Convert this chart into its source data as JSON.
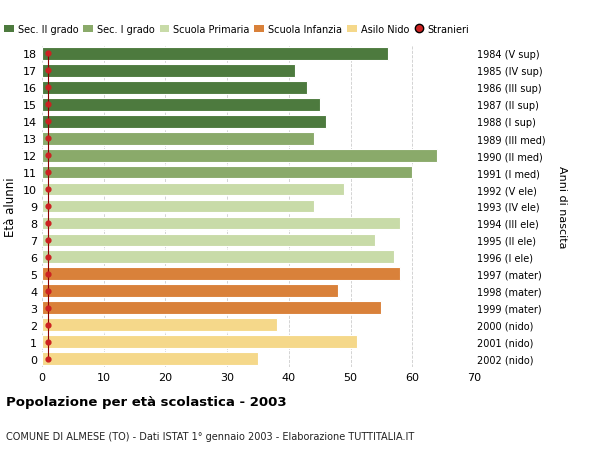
{
  "ages": [
    0,
    1,
    2,
    3,
    4,
    5,
    6,
    7,
    8,
    9,
    10,
    11,
    12,
    13,
    14,
    15,
    16,
    17,
    18
  ],
  "values": [
    35,
    51,
    38,
    55,
    48,
    58,
    57,
    54,
    58,
    44,
    49,
    60,
    64,
    44,
    46,
    45,
    43,
    41,
    56
  ],
  "right_labels": [
    "2002 (nido)",
    "2001 (nido)",
    "2000 (nido)",
    "1999 (mater)",
    "1998 (mater)",
    "1997 (mater)",
    "1996 (I ele)",
    "1995 (II ele)",
    "1994 (III ele)",
    "1993 (IV ele)",
    "1992 (V ele)",
    "1991 (I med)",
    "1990 (II med)",
    "1989 (III med)",
    "1988 (I sup)",
    "1987 (II sup)",
    "1986 (III sup)",
    "1985 (IV sup)",
    "1984 (V sup)"
  ],
  "bar_colors": [
    "#f5d88a",
    "#f5d88a",
    "#f5d88a",
    "#d9813a",
    "#d9813a",
    "#d9813a",
    "#c8dba8",
    "#c8dba8",
    "#c8dba8",
    "#c8dba8",
    "#c8dba8",
    "#8aaa6a",
    "#8aaa6a",
    "#8aaa6a",
    "#4d7a3e",
    "#4d7a3e",
    "#4d7a3e",
    "#4d7a3e",
    "#4d7a3e"
  ],
  "stranieri_x": [
    1,
    1,
    1,
    1,
    1,
    1,
    1,
    1,
    1,
    1,
    1,
    1,
    1,
    1,
    1,
    1,
    1,
    1,
    1
  ],
  "legend_labels": [
    "Sec. II grado",
    "Sec. I grado",
    "Scuola Primaria",
    "Scuola Infanzia",
    "Asilo Nido",
    "Stranieri"
  ],
  "legend_colors": [
    "#4d7a3e",
    "#8aaa6a",
    "#c8dba8",
    "#d9813a",
    "#f5d88a",
    "#cc0000"
  ],
  "ylabel": "Età alunni",
  "right_ylabel": "Anni di nascita",
  "title": "Popolazione per età scolastica - 2003",
  "subtitle": "COMUNE DI ALMESE (TO) - Dati ISTAT 1° gennaio 2003 - Elaborazione TUTTITALIA.IT",
  "xlim": [
    0,
    70
  ],
  "xticks": [
    0,
    10,
    20,
    30,
    40,
    50,
    60,
    70
  ],
  "background_color": "#ffffff",
  "grid_color": "#cccccc"
}
